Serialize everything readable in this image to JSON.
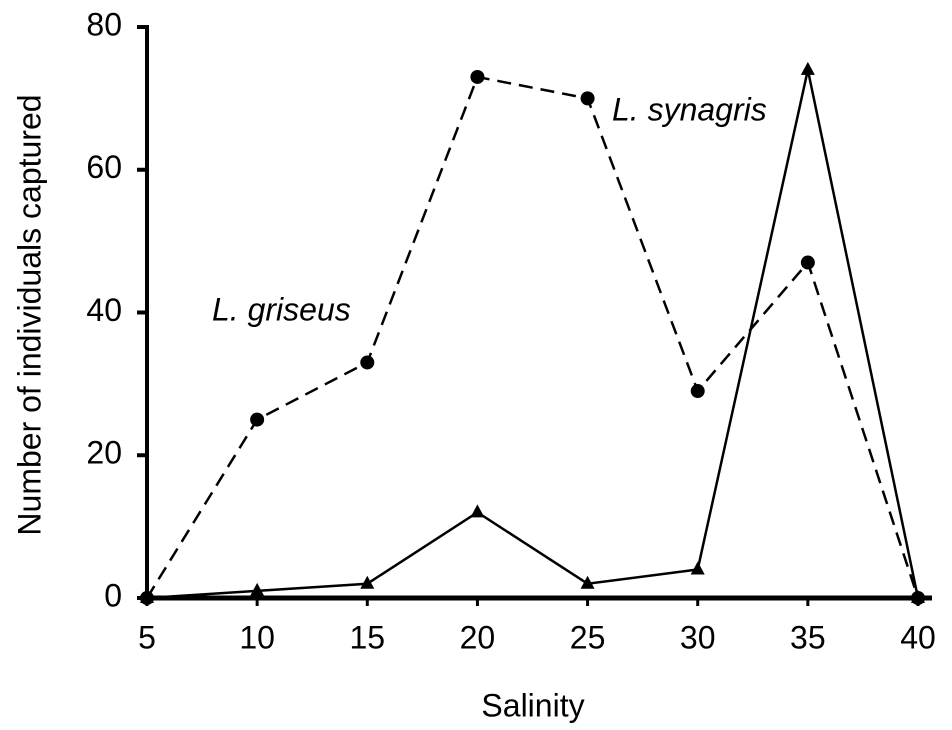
{
  "chart_data": {
    "type": "line",
    "x_label": "Salinity",
    "y_label": "Number of individuals captured",
    "x": [
      5,
      10,
      15,
      20,
      25,
      30,
      35,
      40
    ],
    "series": [
      {
        "name": "L. griseus",
        "color": "#000000",
        "line_style": "dashed",
        "marker": "circle",
        "values": [
          0,
          25,
          33,
          73,
          70,
          29,
          47,
          0
        ]
      },
      {
        "name": "L. synagris",
        "color": "#000000",
        "line_style": "solid",
        "marker": "triangle",
        "values": [
          0,
          1,
          2,
          12,
          2,
          4,
          74,
          0
        ]
      }
    ],
    "xlim": [
      5,
      40
    ],
    "xticks": [
      5,
      10,
      15,
      20,
      25,
      30,
      35,
      40
    ],
    "ylim": [
      0,
      80
    ],
    "yticks": [
      0,
      20,
      40,
      60,
      80
    ],
    "grid": false
  }
}
